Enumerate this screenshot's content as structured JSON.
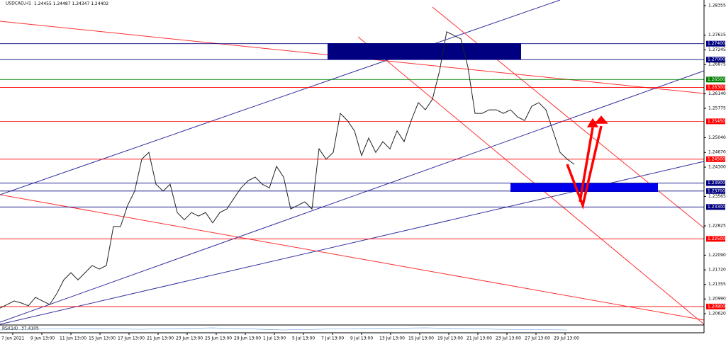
{
  "chart_data": {
    "type": "line",
    "symbol": "USDCAD,H1",
    "ohlc": [
      1.24455,
      1.24487,
      1.24347,
      1.24402
    ],
    "indicator": "RSI(14)",
    "indicator_value": 37.4105,
    "ylim": [
      1.20354,
      1.28497
    ],
    "yticks": [
      1.28355,
      1.27615,
      1.27245,
      {
        "value": 1.26875,
        "label": "1.26875"
      },
      {
        "value": 1.2614,
        "label": "1.26140"
      },
      1.25775,
      {
        "value": 1.2504,
        "label": "1.25040"
      },
      {
        "value": 1.2467,
        "label": "1.24670"
      },
      {
        "value": 1.243,
        "label": "1.24300"
      },
      1.23565,
      1.22825,
      {
        "value": 1.2209,
        "label": "1.22090"
      },
      {
        "value": 1.2172,
        "label": "1.21720"
      },
      1.21355,
      {
        "value": 1.2099,
        "label": "1.20990"
      },
      {
        "value": 1.2062,
        "label": "1.20620"
      }
    ],
    "levels": [
      {
        "value": 1.274,
        "label": "1.27400",
        "color": "#000080"
      },
      {
        "value": 1.27,
        "label": "1.27000",
        "color": "#000080"
      },
      {
        "value": 1.265,
        "label": "1.26500",
        "color": "#008000"
      },
      {
        "value": 1.263,
        "label": "1.26300",
        "color": "#ff0000"
      },
      {
        "value": 1.2545,
        "label": "1.25450",
        "color": "#ff0000"
      },
      {
        "value": 1.245,
        "label": "1.24500",
        "color": "#ff0000"
      },
      {
        "value": 1.239,
        "label": "1.23900",
        "color": "#000080"
      },
      {
        "value": 1.237,
        "label": "1.23700",
        "color": "#000080"
      },
      {
        "value": 1.233,
        "label": "1.23300",
        "color": "#000080"
      },
      {
        "value": 1.225,
        "label": "1.22500",
        "color": "#ff0000"
      },
      {
        "value": 1.208,
        "label": "1.20800",
        "color": "#ff0000"
      }
    ],
    "x_labels": [
      "7 Jun 2021",
      "9 Jun 13:00",
      "11 Jun 13:00",
      "15 Jun 13:00",
      "17 Jun 13:00",
      "21 Jun 13:00",
      "23 Jun 13:00",
      "25 Jun 13:00",
      "29 Jun 13:00",
      "1 Jul 13:00",
      "5 Jul 13:00",
      "7 Jul 13:00",
      "9 Jul 13:00",
      "13 Jul 13:00",
      "15 Jul 13:00",
      "19 Jul 13:00",
      "21 Jul 13:00",
      "23 Jul 13:00",
      "27 Jul 13:00",
      "29 Jul 13:00"
    ],
    "series": [
      {
        "color": "#222222",
        "values": [
          1.2076,
          1.2085,
          1.2094,
          1.2089,
          1.2082,
          1.2103,
          1.2094,
          1.2085,
          1.2112,
          1.2147,
          1.2165,
          1.2147,
          1.2165,
          1.2183,
          1.2174,
          1.2183,
          1.2281,
          1.2281,
          1.2334,
          1.237,
          1.245,
          1.2467,
          1.2387,
          1.237,
          1.2387,
          1.2316,
          1.2298,
          1.2316,
          1.2307,
          1.2316,
          1.229,
          1.2316,
          1.2325,
          1.2352,
          1.2378,
          1.2396,
          1.2405,
          1.2387,
          1.2378,
          1.2432,
          1.2405,
          1.2325,
          1.2334,
          1.2343,
          1.2325,
          1.2476,
          1.245,
          1.2467,
          1.2565,
          1.2547,
          1.2521,
          1.2459,
          1.2503,
          1.2467,
          1.2494,
          1.2476,
          1.2521,
          1.2494,
          1.2547,
          1.2592,
          1.2574,
          1.2601,
          1.2672,
          1.277,
          1.2761,
          1.2752,
          1.2681,
          1.2565,
          1.2565,
          1.2574,
          1.2574,
          1.2565,
          1.2574,
          1.2556,
          1.2547,
          1.2583,
          1.2592,
          1.2574,
          1.2521,
          1.2467,
          1.245,
          1.2437
        ]
      }
    ]
  }
}
